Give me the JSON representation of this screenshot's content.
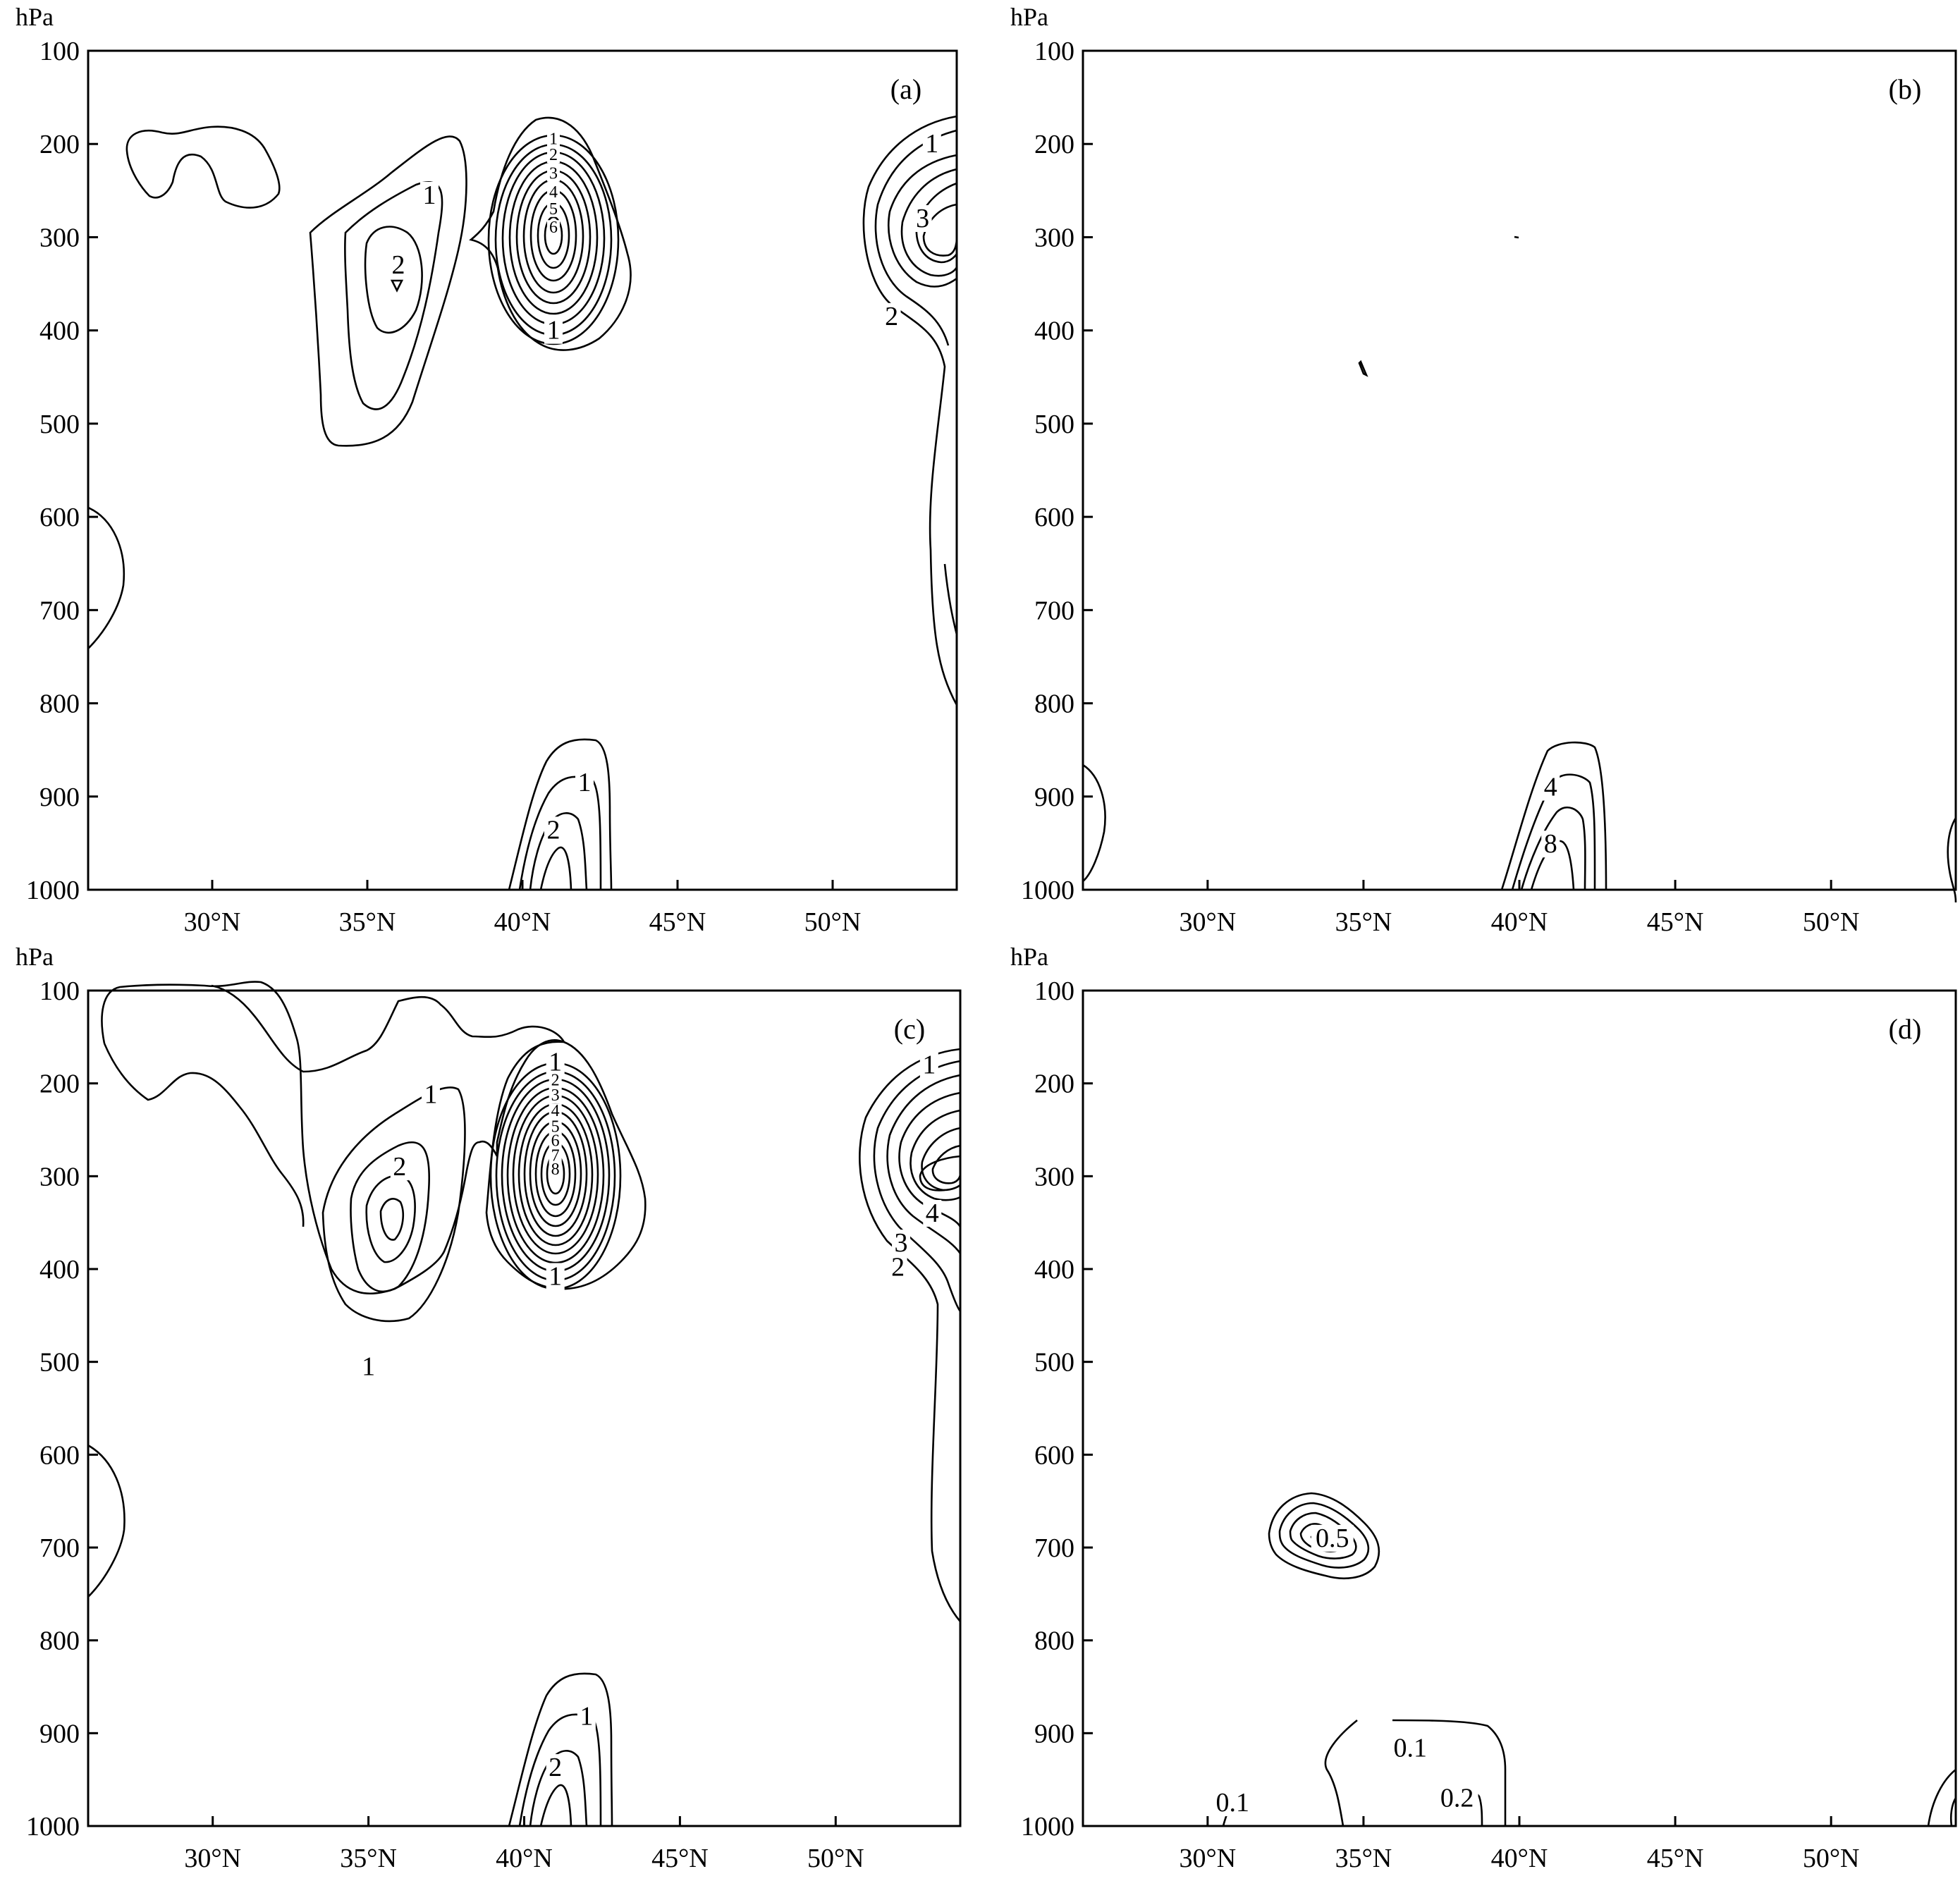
{
  "chart_data": [
    {
      "type": "contour",
      "panel_label": "(a)",
      "ylabel": "hPa",
      "xlim": [
        26,
        54
      ],
      "ylim": [
        1000,
        100
      ],
      "x_ticks": [
        30,
        35,
        40,
        45,
        50
      ],
      "x_tick_labels": [
        "30°N",
        "35°N",
        "40°N",
        "45°N",
        "50°N"
      ],
      "y_ticks": [
        100,
        200,
        300,
        400,
        500,
        600,
        700,
        800,
        900,
        1000
      ],
      "y_tick_labels": [
        "100",
        "200",
        "300",
        "400",
        "500",
        "600",
        "700",
        "800",
        "900",
        "1000"
      ],
      "labels": [
        {
          "text": "1",
          "lat": 37.0,
          "p": 255
        },
        {
          "text": "2",
          "lat": 36.0,
          "p": 330
        },
        {
          "text": "1",
          "lat": 41.0,
          "p": 195
        },
        {
          "text": "2",
          "lat": 41.0,
          "p": 212
        },
        {
          "text": "3",
          "lat": 41.0,
          "p": 232
        },
        {
          "text": "4",
          "lat": 41.0,
          "p": 252
        },
        {
          "text": "5",
          "lat": 41.0,
          "p": 270
        },
        {
          "text": "6",
          "lat": 41.0,
          "p": 290
        },
        {
          "text": "1",
          "lat": 41.0,
          "p": 400
        },
        {
          "text": "1",
          "lat": 53.2,
          "p": 200
        },
        {
          "text": "3",
          "lat": 52.9,
          "p": 280
        },
        {
          "text": "2",
          "lat": 51.9,
          "p": 385
        },
        {
          "text": "1",
          "lat": 42.0,
          "p": 885
        },
        {
          "text": "2",
          "lat": 41.0,
          "p": 936
        }
      ]
    },
    {
      "type": "contour",
      "panel_label": "(b)",
      "ylabel": "hPa",
      "xlim": [
        26,
        54
      ],
      "ylim": [
        1000,
        100
      ],
      "x_ticks": [
        30,
        35,
        40,
        45,
        50
      ],
      "x_tick_labels": [
        "30°N",
        "35°N",
        "40°N",
        "45°N",
        "50°N"
      ],
      "y_ticks": [
        100,
        200,
        300,
        400,
        500,
        600,
        700,
        800,
        900,
        1000
      ],
      "y_tick_labels": [
        "100",
        "200",
        "300",
        "400",
        "500",
        "600",
        "700",
        "800",
        "900",
        "1000"
      ],
      "labels": [
        {
          "text": "4",
          "lat": 41.0,
          "p": 890
        },
        {
          "text": "8",
          "lat": 41.0,
          "p": 951
        }
      ]
    },
    {
      "type": "contour",
      "panel_label": "(c)",
      "ylabel": "hPa",
      "xlim": [
        26,
        54
      ],
      "ylim": [
        1000,
        100
      ],
      "x_ticks": [
        30,
        35,
        40,
        45,
        50
      ],
      "x_tick_labels": [
        "30°N",
        "35°N",
        "40°N",
        "45°N",
        "50°N"
      ],
      "y_ticks": [
        100,
        200,
        300,
        400,
        500,
        600,
        700,
        800,
        900,
        1000
      ],
      "y_tick_labels": [
        "100",
        "200",
        "300",
        "400",
        "500",
        "600",
        "700",
        "800",
        "900",
        "1000"
      ],
      "labels": [
        {
          "text": "1",
          "lat": 37.0,
          "p": 212
        },
        {
          "text": "2",
          "lat": 36.0,
          "p": 290
        },
        {
          "text": "1",
          "lat": 35.0,
          "p": 505
        },
        {
          "text": "1",
          "lat": 41.0,
          "p": 177
        },
        {
          "text": "2",
          "lat": 41.0,
          "p": 197
        },
        {
          "text": "3",
          "lat": 41.0,
          "p": 213
        },
        {
          "text": "4",
          "lat": 41.0,
          "p": 230
        },
        {
          "text": "5",
          "lat": 41.0,
          "p": 247
        },
        {
          "text": "6",
          "lat": 41.0,
          "p": 262
        },
        {
          "text": "7",
          "lat": 41.0,
          "p": 278
        },
        {
          "text": "8",
          "lat": 41.0,
          "p": 293
        },
        {
          "text": "1",
          "lat": 41.0,
          "p": 408
        },
        {
          "text": "1",
          "lat": 53.0,
          "p": 180
        },
        {
          "text": "4",
          "lat": 53.1,
          "p": 340
        },
        {
          "text": "3",
          "lat": 52.1,
          "p": 372
        },
        {
          "text": "2",
          "lat": 52.0,
          "p": 398
        },
        {
          "text": "1",
          "lat": 42.0,
          "p": 882
        },
        {
          "text": "2",
          "lat": 41.0,
          "p": 937
        }
      ]
    },
    {
      "type": "contour",
      "panel_label": "(d)",
      "ylabel": "hPa",
      "xlim": [
        26,
        54
      ],
      "ylim": [
        1000,
        100
      ],
      "x_ticks": [
        30,
        35,
        40,
        45,
        50
      ],
      "x_tick_labels": [
        "30°N",
        "35°N",
        "40°N",
        "45°N",
        "50°N"
      ],
      "y_ticks": [
        100,
        200,
        300,
        400,
        500,
        600,
        700,
        800,
        900,
        1000
      ],
      "y_tick_labels": [
        "100",
        "200",
        "300",
        "400",
        "500",
        "600",
        "700",
        "800",
        "900",
        "1000"
      ],
      "labels": [
        {
          "text": "0.1",
          "lat": 30.8,
          "p": 975
        },
        {
          "text": "0.1",
          "lat": 36.5,
          "p": 916
        },
        {
          "text": "0.2",
          "lat": 38.0,
          "p": 970
        },
        {
          "text": "0.5",
          "lat": 34.0,
          "p": 690
        }
      ]
    }
  ]
}
